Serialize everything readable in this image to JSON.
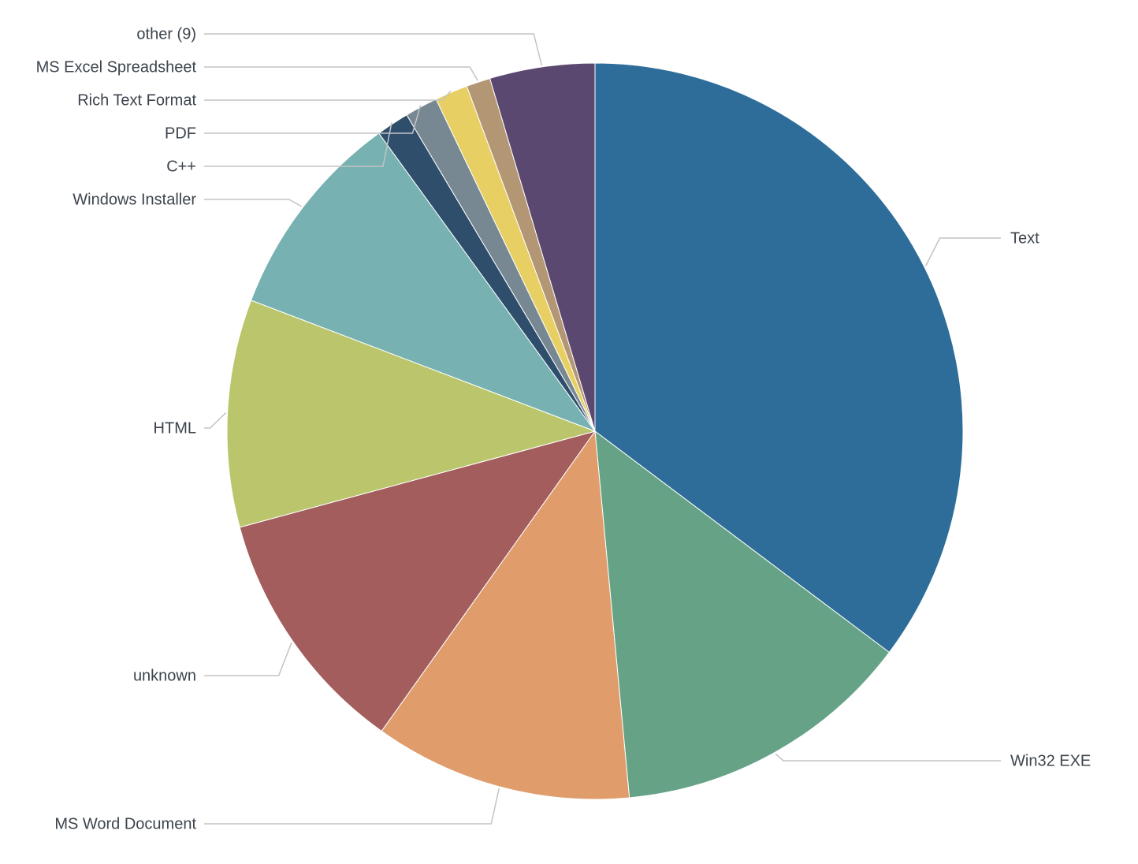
{
  "chart_data": {
    "type": "pie",
    "start_angle_deg": 0,
    "direction": "clockwise",
    "slices": [
      {
        "label": "Text",
        "value": 36.7,
        "color": "#2e6d99"
      },
      {
        "label": "Win32 EXE",
        "value": 13.8,
        "color": "#66a386"
      },
      {
        "label": "MS Word Document",
        "value": 11.8,
        "color": "#e09c6b"
      },
      {
        "label": "unknown",
        "value": 11.4,
        "color": "#a35d5d"
      },
      {
        "label": "HTML",
        "value": 10.4,
        "color": "#bbc66c"
      },
      {
        "label": "Windows Installer",
        "value": 9.6,
        "color": "#77b1b1"
      },
      {
        "label": "C++",
        "value": 1.5,
        "color": "#2e4e6c"
      },
      {
        "label": "PDF",
        "value": 1.5,
        "color": "#778893"
      },
      {
        "label": "Rich Text Format",
        "value": 1.5,
        "color": "#e7cf63"
      },
      {
        "label": "MS Excel Spreadsheet",
        "value": 1.1,
        "color": "#b39673"
      },
      {
        "label": "other (9)",
        "value": 4.8,
        "color": "#5b4870"
      }
    ]
  }
}
